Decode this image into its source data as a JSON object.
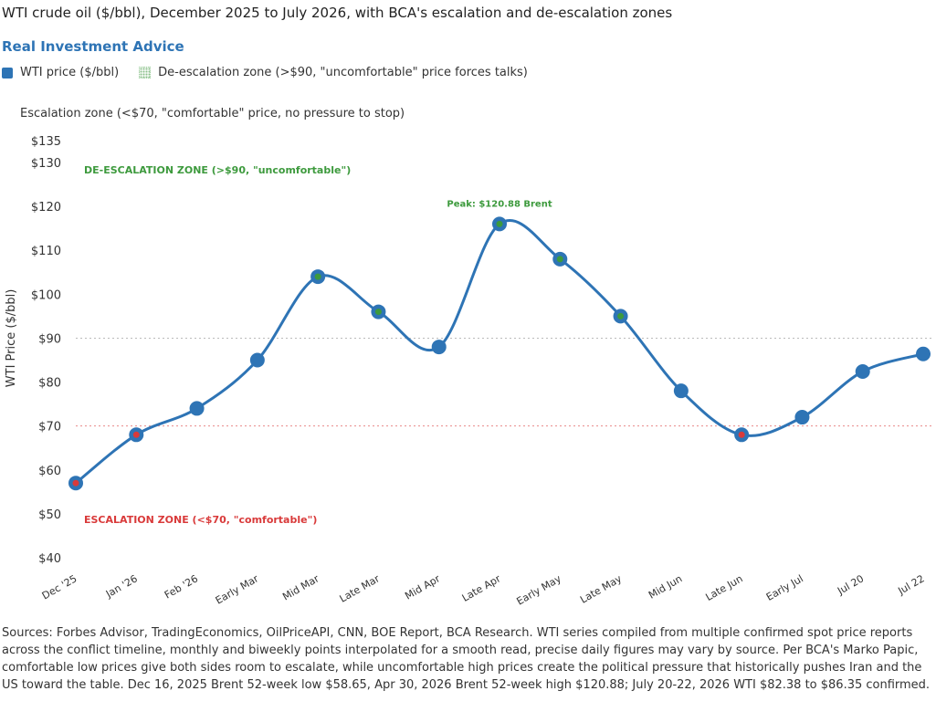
{
  "title": "WTI crude oil ($/bbl), December 2025 to July 2026, with BCA's escalation and de-escalation zones",
  "brand": "Real Investment Advice",
  "legend": {
    "wti": "WTI price ($/bbl)",
    "deescalation": "De-escalation zone (>$90, \"uncomfortable\" price forces talks)",
    "escalation": "Escalation zone (<$70, \"comfortable\" price, no pressure to stop)"
  },
  "sources": "Sources: Forbes Advisor, TradingEconomics, OilPriceAPI, CNN, BOE Report, BCA Research. WTI series compiled from multiple confirmed spot price reports across the conflict timeline, monthly and biweekly points interpolated for a smooth read, precise daily figures may vary by source. Per BCA's Marko Papic, comfortable low prices give both sides room to escalate, while uncomfortable high prices create the political pressure that historically pushes Iran and the US toward the table. Dec 16, 2025 Brent 52-week low $58.65, Apr 30, 2026 Brent 52-week high $120.88; July 20-22, 2026 WTI $82.38 to $86.35 confirmed.",
  "colors": {
    "line": "#2e74b5",
    "escalation": "#d93a3a",
    "deescalation": "#3d9a3d",
    "threshold": "#aaaaaa"
  },
  "chart_data": {
    "type": "line",
    "ylabel": "WTI Price ($/bbl)",
    "ylim": [
      40,
      135
    ],
    "yticks": [
      40,
      50,
      60,
      70,
      80,
      90,
      100,
      110,
      120,
      130,
      135
    ],
    "ytick_labels": [
      "$40",
      "$50",
      "$60",
      "$70",
      "$80",
      "$90",
      "$100",
      "$110",
      "$120",
      "$130",
      "$135"
    ],
    "categories": [
      "Dec '25",
      "Jan '26",
      "Feb '26",
      "Early Mar",
      "Mid Mar",
      "Late Mar",
      "Mid Apr",
      "Late Apr",
      "Early May",
      "Late May",
      "Mid Jun",
      "Late Jun",
      "Early Jul",
      "Jul 20",
      "Jul 22"
    ],
    "series": [
      {
        "name": "WTI price ($/bbl)",
        "values": [
          57,
          68,
          74,
          85,
          104,
          96,
          88,
          116,
          108,
          95,
          78,
          68,
          72,
          82.4,
          86.4
        ]
      }
    ],
    "point_zones": [
      "escalation",
      "escalation",
      "none",
      "none",
      "deescalation",
      "deescalation",
      "none",
      "deescalation",
      "deescalation",
      "deescalation",
      "none",
      "escalation",
      "none",
      "none",
      "none"
    ],
    "thresholds": [
      90,
      70
    ],
    "annotations": {
      "deescalation_zone": "DE-ESCALATION ZONE (>$90, \"uncomfortable\")",
      "escalation_zone": "ESCALATION ZONE (<$70, \"comfortable\")",
      "peak": "Peak: $120.88 Brent"
    },
    "grid": false
  }
}
